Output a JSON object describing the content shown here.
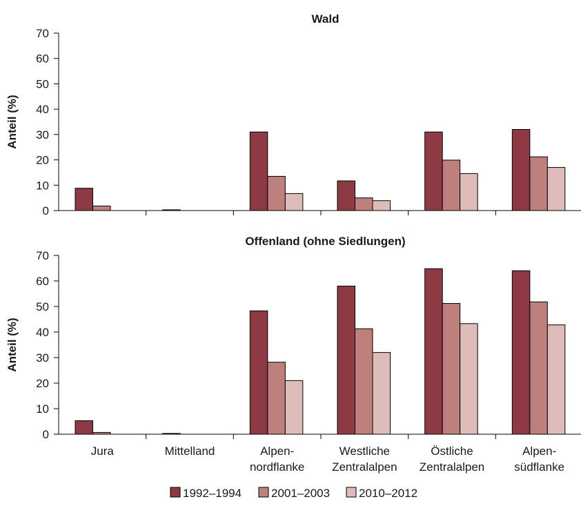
{
  "chart_data": {
    "type": "bar",
    "categories": [
      [
        "Jura"
      ],
      [
        "Mittelland"
      ],
      [
        "Alpen-",
        "nordflanke"
      ],
      [
        "Westliche",
        "Zentralalpen"
      ],
      [
        "Östliche",
        "Zentralalpen"
      ],
      [
        "Alpen-",
        "südflanke"
      ]
    ],
    "series_names": [
      "1992–1994",
      "2001–2003",
      "2010–2012"
    ],
    "colors": [
      "#8e3a44",
      "#bd807d",
      "#ddbcba"
    ],
    "ylim": [
      0,
      70
    ],
    "yticks": [
      0,
      10,
      20,
      30,
      40,
      50,
      60,
      70
    ],
    "legend": "bottom",
    "panels": [
      {
        "title": "Wald",
        "ylabel": "Anteil (%)",
        "series": [
          {
            "name": "1992–1994",
            "values": [
              8.8,
              0.3,
              31,
              11.7,
              31,
              32
            ]
          },
          {
            "name": "2001–2003",
            "values": [
              1.8,
              0,
              13.5,
              5,
              19.9,
              21.2
            ]
          },
          {
            "name": "2010–2012",
            "values": [
              0,
              0,
              6.7,
              3.9,
              14.6,
              17
            ]
          }
        ]
      },
      {
        "title": "Offenland (ohne Siedlungen)",
        "ylabel": "Anteil (%)",
        "series": [
          {
            "name": "1992–1994",
            "values": [
              5.3,
              0.3,
              48.3,
              58,
              64.8,
              64
            ]
          },
          {
            "name": "2001–2003",
            "values": [
              0.7,
              0,
              28.2,
              41.3,
              51.2,
              51.8
            ]
          },
          {
            "name": "2010–2012",
            "values": [
              0,
              0,
              21,
              32,
              43.3,
              42.8
            ]
          }
        ]
      }
    ]
  }
}
